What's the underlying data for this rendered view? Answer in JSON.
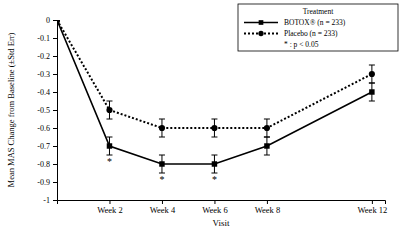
{
  "chart_data": {
    "type": "line",
    "x_label": "Visit",
    "y_label": "Mean MAS Change from Baseline (±Std Err)",
    "x": [
      0,
      2,
      4,
      6,
      8,
      12
    ],
    "xlim": [
      0,
      12.5
    ],
    "xticks": [
      {
        "value": 2,
        "label": "Week 2"
      },
      {
        "value": 4,
        "label": "Week 4"
      },
      {
        "value": 6,
        "label": "Week 6"
      },
      {
        "value": 8,
        "label": "Week 8"
      },
      {
        "value": 12,
        "label": "Week 12"
      }
    ],
    "ylim": [
      -1,
      0
    ],
    "yticks": [
      0,
      -0.1,
      -0.2,
      -0.3,
      -0.4,
      -0.5,
      -0.6,
      -0.7,
      -0.8,
      -0.9,
      -1
    ],
    "grid": false,
    "legend": "upper right",
    "legend_title": "Treatment",
    "series": [
      {
        "name": "BOTOX® (n = 233)",
        "color": "#000000",
        "marker": "square",
        "line_style": "solid",
        "values": [
          0,
          -0.7,
          -0.8,
          -0.8,
          -0.7,
          -0.4
        ],
        "errors": [
          0,
          0.05,
          0.05,
          0.05,
          0.05,
          0.05
        ]
      },
      {
        "name": "Placebo (n = 233)",
        "color": "#000000",
        "marker": "circle",
        "line_style": "dotted",
        "values": [
          0,
          -0.5,
          -0.6,
          -0.6,
          -0.6,
          -0.3
        ],
        "errors": [
          0,
          0.05,
          0.05,
          0.05,
          0.05,
          0.05
        ]
      }
    ],
    "significance": {
      "label": "* : p < 0.05",
      "symbol": "*",
      "x": [
        2,
        4,
        6
      ]
    }
  }
}
